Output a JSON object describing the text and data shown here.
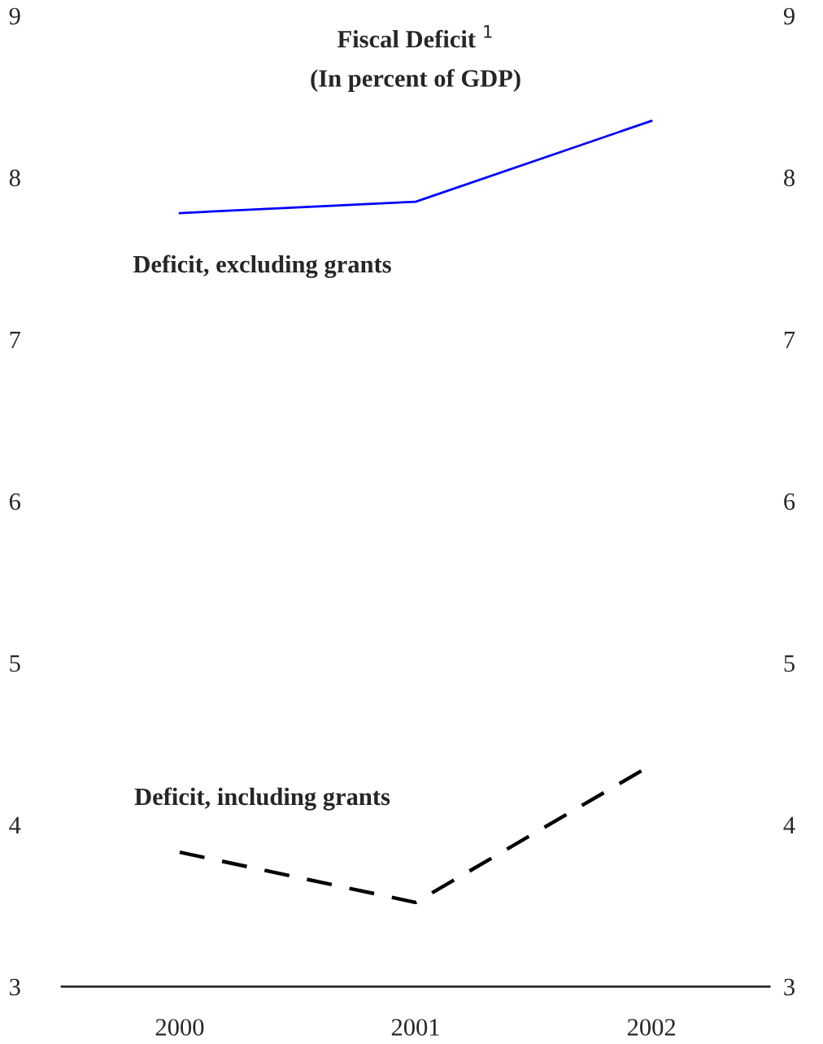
{
  "chart_data": {
    "type": "line",
    "title": "Fiscal Deficit $^{1}$",
    "subtitle": "(In percent of GDP)",
    "categories": [
      "2000",
      "2001",
      "2002"
    ],
    "series": [
      {
        "name": "Deficit, excluding grants",
        "color": "#0000ff",
        "line_style": "solid",
        "values": [
          7.78,
          7.85,
          8.35
        ]
      },
      {
        "name": "Deficit, including grants",
        "color": "#000000",
        "line_style": "dashed",
        "values": [
          3.83,
          3.52,
          4.37
        ]
      }
    ],
    "ylim": [
      3,
      9
    ],
    "yticks": [
      3,
      4,
      5,
      6,
      7,
      8,
      9
    ],
    "y2lim": [
      3,
      9
    ],
    "y2ticks": [
      3,
      4,
      5,
      6,
      7,
      8,
      9
    ],
    "grid": false,
    "legend": false,
    "marker": "none"
  }
}
